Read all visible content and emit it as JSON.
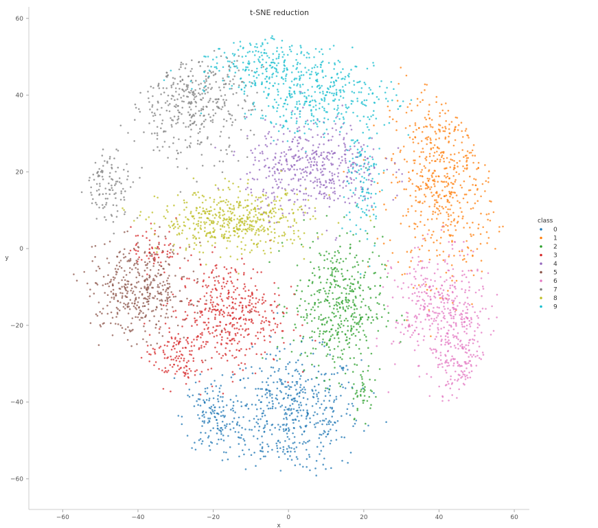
{
  "chart_data": {
    "type": "scatter",
    "title": "t-SNE reduction",
    "xlabel": "x",
    "ylabel": "y",
    "xlim": [
      -69,
      64
    ],
    "ylim": [
      -68,
      63
    ],
    "xticks": [
      -60,
      -40,
      -20,
      0,
      20,
      40,
      60
    ],
    "yticks": [
      -60,
      -40,
      -20,
      0,
      20,
      40,
      60
    ],
    "grid": false,
    "legend": {
      "title": "class",
      "placement": "right",
      "entries": [
        "0",
        "1",
        "2",
        "3",
        "4",
        "5",
        "6",
        "7",
        "8",
        "9"
      ]
    },
    "colors": [
      "#1f77b4",
      "#ff7f0e",
      "#2ca02c",
      "#d62728",
      "#9467bd",
      "#8c564b",
      "#e377c2",
      "#7f7f7f",
      "#bcbd22",
      "#17becf"
    ],
    "clusters": [
      {
        "class": "0",
        "cx": 1,
        "cy": -43,
        "sx": 9,
        "sy": 8,
        "n": 520
      },
      {
        "class": "0",
        "cx": -20,
        "cy": -44,
        "sx": 4,
        "sy": 5,
        "n": 140
      },
      {
        "class": "1",
        "cx": 41,
        "cy": 18,
        "sx": 7,
        "sy": 13,
        "n": 620
      },
      {
        "class": "2",
        "cx": 13,
        "cy": -15,
        "sx": 6,
        "sy": 9,
        "n": 460
      },
      {
        "class": "2",
        "cx": 20,
        "cy": -38,
        "sx": 1.5,
        "sy": 3,
        "n": 40
      },
      {
        "class": "3",
        "cx": -16,
        "cy": -17,
        "sx": 7,
        "sy": 7,
        "n": 440
      },
      {
        "class": "3",
        "cx": -30,
        "cy": -28,
        "sx": 4,
        "sy": 4,
        "n": 120
      },
      {
        "class": "3",
        "cx": -36,
        "cy": 0,
        "sx": 3,
        "sy": 3,
        "n": 60
      },
      {
        "class": "4",
        "cx": 7,
        "cy": 21,
        "sx": 9,
        "sy": 6,
        "n": 480
      },
      {
        "class": "5",
        "cx": -40,
        "cy": -11,
        "sx": 7,
        "sy": 6,
        "n": 420
      },
      {
        "class": "6",
        "cx": 40,
        "cy": -16,
        "sx": 6,
        "sy": 8,
        "n": 360
      },
      {
        "class": "6",
        "cx": 47,
        "cy": -28,
        "sx": 4,
        "sy": 7,
        "n": 200
      },
      {
        "class": "7",
        "cx": -26,
        "cy": 38,
        "sx": 8,
        "sy": 7,
        "n": 420
      },
      {
        "class": "7",
        "cx": -48,
        "cy": 17,
        "sx": 4,
        "sy": 5,
        "n": 120
      },
      {
        "class": "8",
        "cx": -14,
        "cy": 7,
        "sx": 10,
        "sy": 4,
        "n": 520
      },
      {
        "class": "9",
        "cx": 8,
        "cy": 40,
        "sx": 10,
        "sy": 5,
        "n": 380
      },
      {
        "class": "9",
        "cx": -10,
        "cy": 49,
        "sx": 9,
        "sy": 4,
        "n": 220
      },
      {
        "class": "9",
        "cx": 20,
        "cy": 18,
        "sx": 2.5,
        "sy": 9,
        "n": 120
      }
    ]
  }
}
